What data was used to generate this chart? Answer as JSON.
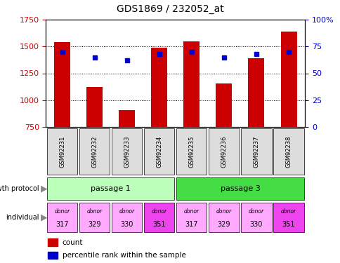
{
  "title": "GDS1869 / 232052_at",
  "samples": [
    "GSM92231",
    "GSM92232",
    "GSM92233",
    "GSM92234",
    "GSM92235",
    "GSM92236",
    "GSM92237",
    "GSM92238"
  ],
  "counts": [
    1540,
    1120,
    910,
    1490,
    1545,
    1155,
    1390,
    1640
  ],
  "percentile_ranks": [
    70,
    65,
    62,
    68,
    70,
    65,
    68,
    70
  ],
  "ylim_left": [
    750,
    1750
  ],
  "ylim_right": [
    0,
    100
  ],
  "yticks_left": [
    750,
    1000,
    1250,
    1500,
    1750
  ],
  "yticks_right": [
    0,
    25,
    50,
    75,
    100
  ],
  "bar_color": "#cc0000",
  "dot_color": "#0000cc",
  "bar_bottom": 750,
  "growth_protocol_groups": [
    {
      "label": "passage 1",
      "start": 0,
      "end": 4,
      "color": "#bbffbb"
    },
    {
      "label": "passage 3",
      "start": 4,
      "end": 8,
      "color": "#44dd44"
    }
  ],
  "individual_labels": [
    "donor\n317",
    "donor\n329",
    "donor\n330",
    "donor\n351",
    "donor\n317",
    "donor\n329",
    "donor\n330",
    "donor\n351"
  ],
  "individual_colors": [
    "#ffaaff",
    "#ffaaff",
    "#ffaaff",
    "#ee44ee",
    "#ffaaff",
    "#ffaaff",
    "#ffaaff",
    "#ee44ee"
  ],
  "sample_box_color": "#dddddd",
  "legend_count_color": "#cc0000",
  "legend_pct_color": "#0000cc",
  "left_axis_color": "#cc0000",
  "right_axis_color": "#0000cc",
  "bg_color": "#ffffff",
  "arrow_color": "#888888"
}
